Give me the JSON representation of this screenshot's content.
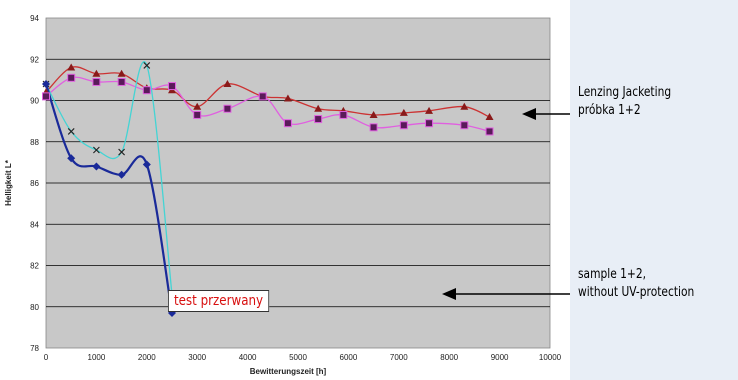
{
  "chart_data": {
    "type": "line",
    "xlabel": "Bewitterungszeit [h]",
    "ylabel": "Helligkeit L*",
    "xlim": [
      0,
      10000
    ],
    "ylim": [
      78,
      94
    ],
    "xticks": [
      0,
      1000,
      2000,
      3000,
      4000,
      5000,
      6000,
      7000,
      8000,
      9000,
      10000
    ],
    "yticks": [
      78,
      80,
      82,
      84,
      86,
      88,
      90,
      92,
      94
    ],
    "grid": true,
    "legend": "none",
    "series": [
      {
        "color": "#cc3333",
        "marker": "triangle",
        "x": [
          0,
          500,
          1000,
          1500,
          2000,
          2500,
          3000,
          3600,
          4300,
          4800,
          5400,
          5900,
          6500,
          7100,
          7600,
          8300,
          8800
        ],
        "y": [
          90.4,
          91.6,
          91.3,
          91.3,
          90.6,
          90.5,
          89.7,
          90.8,
          90.2,
          90.1,
          89.6,
          89.5,
          89.3,
          89.4,
          89.5,
          89.7,
          89.2
        ]
      },
      {
        "color": "#e060e0",
        "marker": "square",
        "x": [
          0,
          500,
          1000,
          1500,
          2000,
          2500,
          3000,
          3600,
          4300,
          4800,
          5400,
          5900,
          6500,
          7100,
          7600,
          8300,
          8800
        ],
        "y": [
          90.2,
          91.1,
          90.9,
          90.9,
          90.5,
          90.7,
          89.3,
          89.6,
          90.2,
          88.9,
          89.1,
          89.3,
          88.7,
          88.8,
          88.9,
          88.8,
          88.5
        ]
      },
      {
        "color": "#44d4d4",
        "marker": "x",
        "x": [
          0,
          500,
          1000,
          1500,
          2000,
          2500
        ],
        "y": [
          90.8,
          88.5,
          87.6,
          87.5,
          91.7,
          80.6
        ]
      },
      {
        "color": "#1a2a99",
        "marker": "diamond",
        "x": [
          0,
          500,
          1000,
          1500,
          2000,
          2500
        ],
        "y": [
          90.8,
          87.2,
          86.8,
          86.4,
          86.9,
          79.7
        ]
      }
    ]
  },
  "annotations": {
    "lenzing_line1": "Lenzing Jacketing",
    "lenzing_line2": "próbka 1+2",
    "sample_line1": "sample 1+2,",
    "sample_line2": "without UV-protection",
    "test_label": "test przerwany"
  },
  "colors": {
    "plot_area": "#c8c8c8",
    "grid": "#000000"
  }
}
